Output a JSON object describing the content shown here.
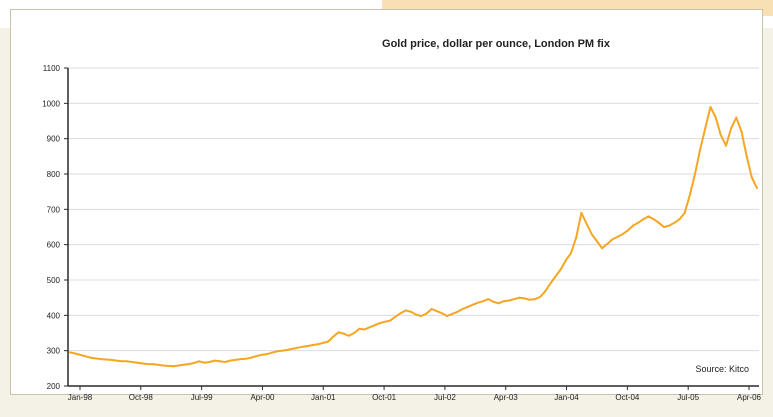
{
  "chart_data": {
    "type": "line",
    "title": "Gold price, dollar per ounce, London PM fix",
    "source": "Source: Kitco",
    "xlabel": "",
    "ylabel": "",
    "ylim": [
      200,
      1100
    ],
    "yticks": [
      200,
      300,
      400,
      500,
      600,
      700,
      800,
      900,
      1000,
      1100
    ],
    "xticks": [
      "Jan-98",
      "Oct-98",
      "Jul-99",
      "Apr-00",
      "Jan-01",
      "Oct-01",
      "Jul-02",
      "Apr-03",
      "Jan-04",
      "Oct-04",
      "Jul-05",
      "Apr-06"
    ],
    "grid": true,
    "series": [
      {
        "name": "",
        "color": "#f5a623",
        "x": [
          0,
          1,
          2,
          3,
          4,
          5,
          6,
          7,
          8,
          9,
          10,
          11,
          12,
          13,
          14,
          15,
          16,
          17,
          18,
          19,
          20,
          21,
          22,
          23,
          24,
          25,
          26,
          27,
          28,
          29,
          30,
          31,
          32,
          33,
          34,
          35,
          36,
          37,
          38,
          39,
          40,
          41,
          42,
          43,
          44,
          45,
          46,
          47,
          48,
          49,
          50,
          51,
          52,
          53,
          54,
          55,
          56,
          57,
          58,
          59,
          60,
          61,
          62,
          63,
          64,
          65,
          66,
          67,
          68,
          69,
          70,
          71,
          72,
          73,
          74,
          75,
          76,
          77,
          78,
          79,
          80,
          81,
          82,
          83,
          84,
          85,
          86,
          87,
          88,
          89,
          90,
          91,
          92,
          93,
          94,
          95,
          96,
          97,
          98,
          99,
          100,
          101,
          102,
          103,
          104,
          105,
          106,
          107,
          108,
          109,
          110,
          111,
          112,
          113,
          114,
          115,
          116,
          117,
          118,
          119,
          120,
          121,
          122,
          123,
          124,
          125,
          126,
          127,
          128,
          129,
          130,
          131,
          132,
          133
        ],
        "values": [
          295,
          292,
          288,
          284,
          280,
          278,
          276,
          275,
          274,
          272,
          270,
          270,
          268,
          266,
          264,
          262,
          262,
          260,
          258,
          257,
          256,
          258,
          260,
          262,
          265,
          270,
          266,
          268,
          272,
          270,
          268,
          272,
          274,
          276,
          277,
          280,
          284,
          288,
          290,
          294,
          298,
          300,
          302,
          305,
          308,
          311,
          313,
          316,
          318,
          322,
          326,
          340,
          352,
          348,
          342,
          350,
          362,
          360,
          366,
          372,
          378,
          382,
          385,
          396,
          406,
          414,
          410,
          402,
          398,
          405,
          418,
          412,
          406,
          398,
          404,
          410,
          418,
          424,
          430,
          436,
          440,
          446,
          438,
          434,
          440,
          442,
          446,
          450,
          448,
          444,
          446,
          452,
          468,
          490,
          510,
          530,
          556,
          576,
          620,
          690,
          660,
          630,
          610,
          590,
          602,
          615,
          622,
          630,
          640,
          654,
          662,
          672,
          680,
          672,
          662,
          650,
          654,
          662,
          672,
          690,
          740,
          800,
          870,
          930,
          990,
          960,
          910,
          880,
          930,
          960,
          920,
          850,
          790,
          760
        ]
      }
    ]
  }
}
